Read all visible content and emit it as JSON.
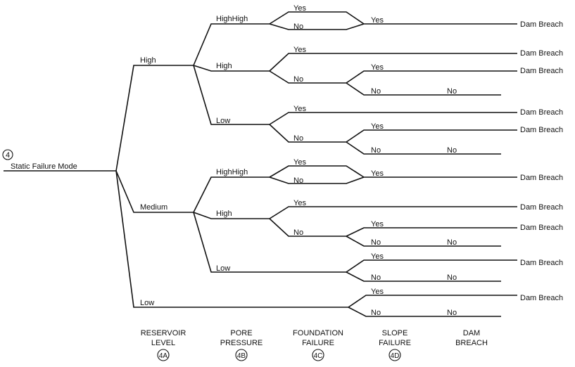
{
  "root": {
    "marker": "4",
    "label": "Static Failure Mode"
  },
  "reservoir": {
    "high": {
      "label": "High",
      "highhigh": {
        "label": "HighHigh",
        "found_yes": "Yes",
        "found_no": "No",
        "slope_yes": "Yes",
        "outcome": "Dam Breach"
      },
      "high": {
        "label": "High",
        "found_yes": "Yes",
        "found_yes_outcome": "Dam Breach",
        "found_no": "No",
        "slope_yes": "Yes",
        "slope_yes_outcome": "Dam Breach",
        "slope_no": "No",
        "breach_no": "No"
      },
      "low": {
        "label": "Low",
        "found_yes": "Yes",
        "found_yes_outcome": "Dam Breach",
        "found_no": "No",
        "slope_yes": "Yes",
        "slope_yes_outcome": "Dam Breach",
        "slope_no": "No",
        "breach_no": "No"
      }
    },
    "medium": {
      "label": "Medium",
      "highhigh": {
        "label": "HighHigh",
        "found_yes": "Yes",
        "found_no": "No",
        "slope_yes": "Yes",
        "outcome": "Dam Breach"
      },
      "high": {
        "label": "High",
        "found_yes": "Yes",
        "found_yes_outcome": "Dam Breach",
        "found_no": "No",
        "slope_yes": "Yes",
        "slope_yes_outcome": "Dam Breach",
        "slope_no": "No",
        "breach_no": "No"
      },
      "low": {
        "label": "Low",
        "slope_yes": "Yes",
        "slope_yes_outcome": "Dam Breach",
        "slope_no": "No",
        "breach_no": "No"
      }
    },
    "low": {
      "label": "Low",
      "slope_yes": "Yes",
      "slope_yes_outcome": "Dam Breach",
      "slope_no": "No",
      "breach_no": "No"
    }
  },
  "columns": [
    {
      "line1": "RESERVOIR",
      "line2": "LEVEL",
      "marker": "4A"
    },
    {
      "line1": "PORE",
      "line2": "PRESSURE",
      "marker": "4B"
    },
    {
      "line1": "FOUNDATION",
      "line2": "FAILURE",
      "marker": "4C"
    },
    {
      "line1": "SLOPE",
      "line2": "FAILURE",
      "marker": "4D"
    },
    {
      "line1": "DAM",
      "line2": "BREACH"
    }
  ]
}
